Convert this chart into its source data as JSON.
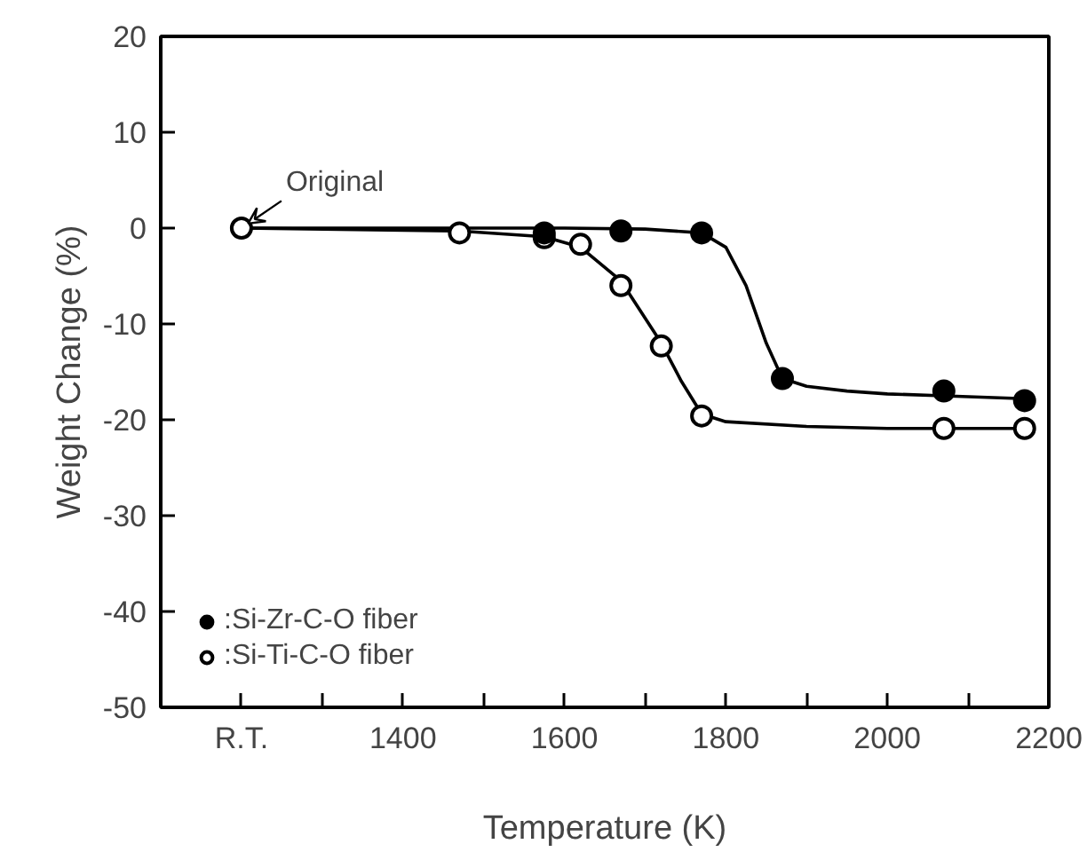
{
  "chart_data": {
    "type": "scatter",
    "xlabel": "Temperature (K)",
    "ylabel": "Weight Change (%)",
    "xlim": [
      1100,
      2200
    ],
    "ylim": [
      -50,
      20
    ],
    "xticks": [
      {
        "value": 1200,
        "label": "R.T."
      },
      {
        "value": 1300,
        "label": null
      },
      1400,
      {
        "value": 1500,
        "label": null
      },
      1600,
      {
        "value": 1700,
        "label": null
      },
      1800,
      {
        "value": 1900,
        "label": null
      },
      2000,
      {
        "value": 2100,
        "label": null
      },
      2200
    ],
    "yticks": [
      -50,
      -40,
      -30,
      -20,
      -10,
      0,
      10,
      20
    ],
    "grid": false,
    "legend": "bottom left",
    "annotations": [
      {
        "text": "Original",
        "x": 1200,
        "y": 0
      }
    ],
    "series": [
      {
        "name": ":Si-Zr-C-O fiber",
        "marker": "circle",
        "color": "#000000",
        "x": [
          1575,
          1670,
          1770,
          1870,
          2070,
          2170
        ],
        "values": [
          -0.5,
          -0.3,
          -0.5,
          -15.7,
          -17.0,
          -18.0
        ]
      },
      {
        "name": ":Si-Ti-C-O fiber",
        "marker": "circle",
        "color": "#ffffff",
        "x": [
          1200,
          1470,
          1575,
          1620,
          1670,
          1720,
          1770,
          2070,
          2170
        ],
        "values": [
          0,
          -0.5,
          -1.0,
          -1.7,
          -6.0,
          -12.3,
          -19.6,
          -20.9,
          -20.9
        ]
      },
      {
        "type": "line",
        "marker": "none",
        "color": "#000000",
        "x": [
          1200,
          1500,
          1600,
          1700,
          1770,
          1800,
          1825,
          1850,
          1870,
          1900,
          1950,
          2000,
          2070,
          2170
        ],
        "values": [
          0,
          0,
          0,
          -0.1,
          -0.5,
          -2,
          -6,
          -12,
          -15.7,
          -16.5,
          -17,
          -17.3,
          -17.5,
          -17.8
        ]
      },
      {
        "type": "line",
        "marker": "none",
        "color": "#000000",
        "x": [
          1200,
          1470,
          1575,
          1620,
          1670,
          1720,
          1745,
          1770,
          1800,
          1900,
          2000,
          2070,
          2170
        ],
        "values": [
          0,
          -0.3,
          -0.9,
          -2,
          -5.5,
          -12,
          -16,
          -19.4,
          -20.2,
          -20.7,
          -20.9,
          -20.9,
          -20.9
        ]
      }
    ]
  }
}
